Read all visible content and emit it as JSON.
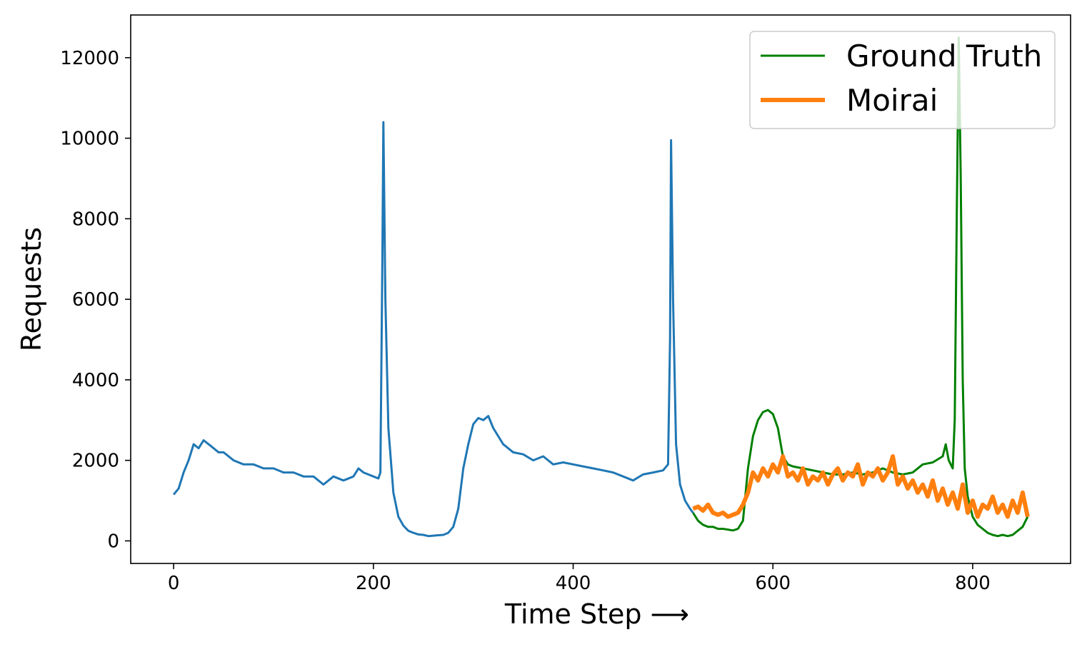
{
  "chart_data": {
    "type": "line",
    "title": "",
    "xlabel": "Time Step  ⟶",
    "ylabel": "Requests",
    "xlim": [
      -43,
      898
    ],
    "ylim": [
      -560,
      13060
    ],
    "xticks": [
      0,
      200,
      400,
      600,
      800
    ],
    "xtick_labels": [
      "0",
      "200",
      "400",
      "600",
      "800"
    ],
    "yticks": [
      0,
      2000,
      4000,
      6000,
      8000,
      10000,
      12000
    ],
    "ytick_labels": [
      "0",
      "2000",
      "4000",
      "6000",
      "8000",
      "10000",
      "12000"
    ],
    "grid": false,
    "legend": {
      "position": "top-right",
      "entries": [
        {
          "label": "Ground Truth",
          "color": "#008000"
        },
        {
          "label": "Moirai",
          "color": "#ff7f0e"
        }
      ]
    },
    "series": [
      {
        "color": "#1f77b4",
        "x": [
          0,
          5,
          10,
          15,
          20,
          25,
          30,
          35,
          40,
          45,
          50,
          60,
          70,
          80,
          90,
          100,
          110,
          120,
          130,
          140,
          150,
          160,
          170,
          180,
          185,
          190,
          195,
          200,
          205,
          207,
          209,
          210,
          212,
          215,
          220,
          225,
          230,
          235,
          240,
          245,
          250,
          255,
          260,
          265,
          270,
          275,
          280,
          285,
          290,
          295,
          300,
          305,
          310,
          315,
          320,
          330,
          340,
          350,
          360,
          370,
          380,
          390,
          400,
          410,
          420,
          430,
          440,
          450,
          460,
          470,
          480,
          490,
          495,
          497,
          498,
          500,
          503,
          507,
          512,
          517,
          520
        ],
        "y": [
          1150,
          1300,
          1700,
          2000,
          2400,
          2300,
          2500,
          2400,
          2300,
          2200,
          2200,
          2000,
          1900,
          1900,
          1800,
          1800,
          1700,
          1700,
          1600,
          1600,
          1400,
          1600,
          1500,
          1600,
          1800,
          1700,
          1650,
          1600,
          1550,
          1700,
          7000,
          10400,
          6000,
          2800,
          1200,
          600,
          380,
          250,
          200,
          160,
          150,
          120,
          130,
          140,
          150,
          200,
          350,
          800,
          1800,
          2400,
          2900,
          3050,
          3000,
          3100,
          2800,
          2400,
          2200,
          2150,
          2000,
          2100,
          1900,
          1950,
          1900,
          1850,
          1800,
          1750,
          1700,
          1600,
          1500,
          1650,
          1700,
          1750,
          1900,
          5000,
          9950,
          6000,
          2400,
          1400,
          1000,
          800,
          700
        ]
      },
      {
        "name": "Ground Truth",
        "color": "#008000",
        "x": [
          520,
          525,
          530,
          535,
          540,
          545,
          550,
          555,
          560,
          565,
          570,
          575,
          580,
          585,
          590,
          595,
          600,
          605,
          610,
          615,
          620,
          630,
          640,
          650,
          660,
          670,
          680,
          690,
          700,
          710,
          720,
          730,
          740,
          750,
          760,
          770,
          773,
          776,
          780,
          782,
          784,
          786,
          788,
          790,
          792,
          795,
          800,
          805,
          810,
          815,
          820,
          825,
          830,
          835,
          840,
          845,
          850,
          855
        ],
        "y": [
          700,
          500,
          400,
          350,
          350,
          300,
          300,
          280,
          260,
          300,
          500,
          1800,
          2600,
          3000,
          3200,
          3250,
          3150,
          2800,
          2100,
          1900,
          1850,
          1800,
          1750,
          1700,
          1650,
          1650,
          1700,
          1650,
          1700,
          1800,
          1700,
          1650,
          1700,
          1900,
          1950,
          2100,
          2400,
          2000,
          1800,
          3000,
          8000,
          12500,
          9000,
          4000,
          1800,
          1100,
          600,
          400,
          300,
          200,
          150,
          120,
          150,
          120,
          150,
          250,
          350,
          600
        ]
      },
      {
        "name": "Moirai",
        "color": "#ff7f0e",
        "x": [
          520,
          525,
          530,
          535,
          540,
          545,
          550,
          555,
          560,
          565,
          570,
          575,
          580,
          585,
          590,
          595,
          600,
          605,
          610,
          615,
          620,
          625,
          630,
          635,
          640,
          645,
          650,
          655,
          660,
          665,
          670,
          675,
          680,
          685,
          690,
          695,
          700,
          705,
          710,
          715,
          720,
          725,
          730,
          735,
          740,
          745,
          750,
          755,
          760,
          765,
          770,
          775,
          780,
          785,
          790,
          795,
          800,
          805,
          810,
          815,
          820,
          825,
          830,
          835,
          840,
          845,
          850,
          855
        ],
        "y": [
          800,
          850,
          750,
          900,
          700,
          650,
          700,
          600,
          650,
          700,
          900,
          1200,
          1700,
          1500,
          1800,
          1600,
          1900,
          1700,
          2100,
          1600,
          1700,
          1500,
          1800,
          1400,
          1600,
          1500,
          1700,
          1400,
          1650,
          1800,
          1500,
          1700,
          1600,
          1900,
          1400,
          1700,
          1600,
          1800,
          1500,
          1700,
          2100,
          1400,
          1600,
          1300,
          1500,
          1200,
          1400,
          1100,
          1500,
          1000,
          1300,
          900,
          1200,
          800,
          1400,
          700,
          1000,
          600,
          900,
          800,
          1100,
          700,
          900,
          600,
          1000,
          700,
          1200,
          600
        ]
      }
    ]
  }
}
